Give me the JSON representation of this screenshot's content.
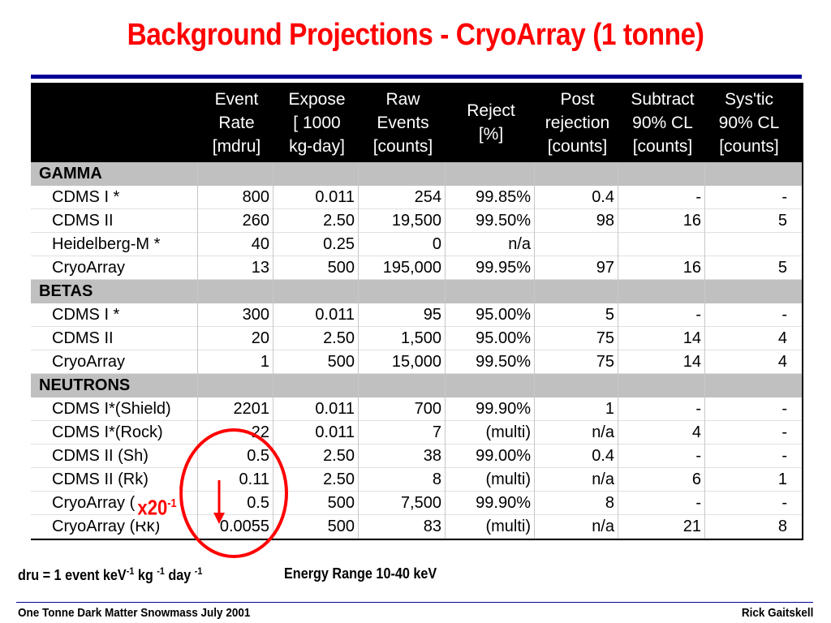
{
  "title": "Background Projections - CryoArray (1 tonne)",
  "columns": [
    {
      "key": "name",
      "label": ""
    },
    {
      "key": "rate",
      "label": "Event\nRate\n[mdru]"
    },
    {
      "key": "expose",
      "label": "Expose\n[ 1000\nkg-day]"
    },
    {
      "key": "raw",
      "label": "Raw\nEvents\n[counts]"
    },
    {
      "key": "reject",
      "label": "Reject\n[%]"
    },
    {
      "key": "post",
      "label": "Post\nrejection\n[counts]"
    },
    {
      "key": "subtract",
      "label": "Subtract\n90% CL\n[counts]"
    },
    {
      "key": "systic",
      "label": "Sys'tic\n90% CL\n[counts]"
    }
  ],
  "sections": [
    {
      "label": "GAMMA",
      "rows": [
        {
          "name": "CDMS I *",
          "rate": "800",
          "expose": "0.011",
          "raw": "254",
          "reject": "99.85%",
          "post": "0.4",
          "subtract": "-",
          "systic": "-"
        },
        {
          "name": "CDMS II",
          "rate": "260",
          "expose": "2.50",
          "raw": "19,500",
          "reject": "99.50%",
          "post": "98",
          "subtract": "16",
          "systic": "5"
        },
        {
          "name": "Heidelberg-M *",
          "rate": "40",
          "expose": "0.25",
          "raw": "0",
          "reject": "n/a",
          "post": "",
          "subtract": "",
          "systic": ""
        },
        {
          "name": "CryoArray",
          "rate": "13",
          "expose": "500",
          "raw": "195,000",
          "reject": "99.95%",
          "post": "97",
          "subtract": "16",
          "systic": "5"
        }
      ]
    },
    {
      "label": "BETAS",
      "rows": [
        {
          "name": "CDMS I *",
          "rate": "300",
          "expose": "0.011",
          "raw": "95",
          "reject": "95.00%",
          "post": "5",
          "subtract": "-",
          "systic": "-"
        },
        {
          "name": "CDMS II",
          "rate": "20",
          "expose": "2.50",
          "raw": "1,500",
          "reject": "95.00%",
          "post": "75",
          "subtract": "14",
          "systic": "4"
        },
        {
          "name": "CryoArray",
          "rate": "1",
          "expose": "500",
          "raw": "15,000",
          "reject": "99.50%",
          "post": "75",
          "subtract": "14",
          "systic": "4"
        }
      ]
    },
    {
      "label": "NEUTRONS",
      "rows": [
        {
          "name": "CDMS I*(Shield)",
          "rate": "2201",
          "expose": "0.011",
          "raw": "700",
          "reject": "99.90%",
          "post": "1",
          "subtract": "-",
          "systic": "-"
        },
        {
          "name": "CDMS I*(Rock)",
          "rate": "22",
          "expose": "0.011",
          "raw": "7",
          "reject": "(multi)",
          "post": "n/a",
          "subtract": "4",
          "systic": "-"
        },
        {
          "name": "CDMS II (Sh)",
          "rate": "0.5",
          "expose": "2.50",
          "raw": "38",
          "reject": "99.00%",
          "post": "0.4",
          "subtract": "-",
          "systic": "-"
        },
        {
          "name": "CDMS II (Rk)",
          "rate": "0.11",
          "expose": "2.50",
          "raw": "8",
          "reject": "(multi)",
          "post": "n/a",
          "subtract": "6",
          "systic": "1"
        },
        {
          "name": "CryoArray (Sh)",
          "rate": "0.5",
          "expose": "500",
          "raw": "7,500",
          "reject": "99.90%",
          "post": "8",
          "subtract": "-",
          "systic": "-"
        },
        {
          "name": "CryoArray (Rk)",
          "rate": "0.0055",
          "expose": "500",
          "raw": "83",
          "reject": "(multi)",
          "post": "n/a",
          "subtract": "21",
          "systic": "8"
        }
      ]
    }
  ],
  "annotation": {
    "base": "x20",
    "exponent": "-1",
    "color": "#ff0000"
  },
  "notes": {
    "dru": {
      "text": "dru = 1 event keV",
      "e1": "-1",
      "t2": " kg ",
      "e2": "-1",
      "t3": " day ",
      "e3": "-1"
    },
    "energy": "Energy Range 10-40 keV"
  },
  "footer": {
    "left": "One Tonne Dark Matter Snowmass July 2001",
    "right": "Rick Gaitskell"
  },
  "colors": {
    "title": "#ff0000",
    "rule": "#000099",
    "header_bg": "#000000",
    "section_bg": "#c0c0c0"
  }
}
